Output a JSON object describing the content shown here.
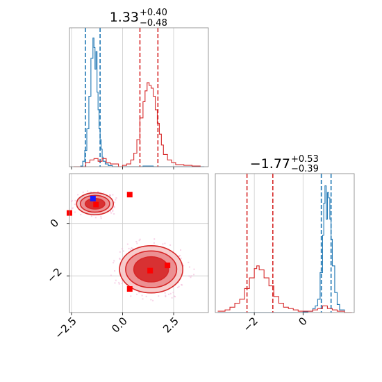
{
  "chart_data": [
    {
      "type": "histogram",
      "panel": "marginal-x1",
      "title": {
        "main": "1.33",
        "sup": "+0.40",
        "sub": "−0.48"
      },
      "xlim": [
        -2.6,
        4.2
      ],
      "grid": true,
      "series": [
        {
          "color": "#1f77b4",
          "points": [
            [
              -2.4,
              0
            ],
            [
              -2.2,
              0
            ],
            [
              -2.05,
              0.005
            ],
            [
              -1.95,
              0.04
            ],
            [
              -1.85,
              0.12
            ],
            [
              -1.75,
              0.28
            ],
            [
              -1.65,
              0.52
            ],
            [
              -1.55,
              0.8
            ],
            [
              -1.45,
              0.95
            ],
            [
              -1.4,
              0.88
            ],
            [
              -1.35,
              0.72
            ],
            [
              -1.3,
              0.85
            ],
            [
              -1.25,
              0.55
            ],
            [
              -1.2,
              0.42
            ],
            [
              -1.15,
              0.28
            ],
            [
              -1.1,
              0.2
            ],
            [
              -1.05,
              0.13
            ],
            [
              -1.0,
              0.07
            ],
            [
              -0.95,
              0.04
            ],
            [
              -0.85,
              0.02
            ],
            [
              -0.7,
              0.008
            ],
            [
              -0.5,
              0.0
            ],
            [
              0.5,
              0.0
            ],
            [
              1.0,
              0.005
            ],
            [
              1.5,
              0.0
            ],
            [
              4.0,
              0.0
            ]
          ],
          "quantile_lines": [
            -1.82,
            -1.1
          ]
        },
        {
          "color": "#d62728",
          "points": [
            [
              -2.4,
              0
            ],
            [
              -1.8,
              0.03
            ],
            [
              -1.6,
              0.05
            ],
            [
              -1.4,
              0.06
            ],
            [
              -1.2,
              0.04
            ],
            [
              -1.0,
              0.06
            ],
            [
              -0.8,
              0.03
            ],
            [
              -0.6,
              0.02
            ],
            [
              -0.2,
              0.0
            ],
            [
              0.0,
              0.01
            ],
            [
              0.2,
              0.02
            ],
            [
              0.4,
              0.05
            ],
            [
              0.55,
              0.1
            ],
            [
              0.7,
              0.2
            ],
            [
              0.85,
              0.36
            ],
            [
              1.0,
              0.48
            ],
            [
              1.1,
              0.56
            ],
            [
              1.2,
              0.62
            ],
            [
              1.3,
              0.6
            ],
            [
              1.4,
              0.58
            ],
            [
              1.5,
              0.52
            ],
            [
              1.6,
              0.42
            ],
            [
              1.7,
              0.32
            ],
            [
              1.8,
              0.24
            ],
            [
              1.9,
              0.16
            ],
            [
              2.0,
              0.09
            ],
            [
              2.2,
              0.05
            ],
            [
              2.4,
              0.03
            ],
            [
              2.6,
              0.015
            ],
            [
              3.0,
              0.01
            ],
            [
              3.4,
              0.005
            ],
            [
              3.8,
              0.0
            ]
          ],
          "quantile_lines": [
            0.85,
            1.73
          ]
        }
      ]
    },
    {
      "type": "contour",
      "panel": "joint-x1-x2",
      "xlim": [
        -2.6,
        4.2
      ],
      "ylim": [
        -3.4,
        1.9
      ],
      "xticks": [
        "−2.5",
        "0.0",
        "2.5"
      ],
      "yticks": [
        "−2",
        "0"
      ],
      "grid": true,
      "components": [
        {
          "color": "#1f77b4",
          "center": [
            -1.5,
            0.85
          ],
          "levels": [
            [
              0.6,
              0.28
            ],
            [
              0.42,
              0.18
            ],
            [
              0.22,
              0.1
            ]
          ]
        },
        {
          "color": "#d62728",
          "center": [
            -1.35,
            0.75
          ],
          "levels": [
            [
              0.9,
              0.42
            ],
            [
              0.72,
              0.32
            ],
            [
              0.48,
              0.2
            ]
          ]
        },
        {
          "color": "#d62728",
          "center": [
            1.4,
            -1.75
          ],
          "levels": [
            [
              1.55,
              0.9
            ],
            [
              1.25,
              0.7
            ],
            [
              0.85,
              0.48
            ]
          ]
        }
      ],
      "markers": [
        {
          "color": "#1a1aff",
          "x": -1.45,
          "y": 0.95
        },
        {
          "color": "#ff0000",
          "x": -1.3,
          "y": 0.72
        },
        {
          "color": "#ff0000",
          "x": 0.35,
          "y": 1.1
        },
        {
          "color": "#ff0000",
          "x": 1.35,
          "y": -1.8
        },
        {
          "color": "#ff0000",
          "x": 2.2,
          "y": -1.6
        },
        {
          "color": "#ff0000",
          "x": 0.35,
          "y": -2.5
        },
        {
          "color": "#ff0000",
          "x": -2.6,
          "y": 0.4
        }
      ]
    },
    {
      "type": "histogram",
      "panel": "marginal-x2",
      "title": {
        "main": "−1.77",
        "sup": "+0.53",
        "sub": "−0.39"
      },
      "xlim": [
        -3.6,
        2.1
      ],
      "xticks": [
        "−2",
        "0"
      ],
      "grid": true,
      "series": [
        {
          "color": "#1f77b4",
          "points": [
            [
              -3.5,
              0
            ],
            [
              -0.4,
              0
            ],
            [
              0.0,
              0.005
            ],
            [
              0.2,
              0.01
            ],
            [
              0.4,
              0.03
            ],
            [
              0.5,
              0.05
            ],
            [
              0.6,
              0.1
            ],
            [
              0.7,
              0.3
            ],
            [
              0.8,
              0.58
            ],
            [
              0.85,
              0.82
            ],
            [
              0.9,
              0.95
            ],
            [
              0.95,
              0.7
            ],
            [
              1.0,
              0.9
            ],
            [
              1.05,
              0.86
            ],
            [
              1.1,
              0.7
            ],
            [
              1.15,
              0.55
            ],
            [
              1.2,
              0.35
            ],
            [
              1.3,
              0.15
            ],
            [
              1.4,
              0.06
            ],
            [
              1.5,
              0.02
            ],
            [
              1.7,
              0.0
            ],
            [
              2.0,
              0.0
            ]
          ],
          "quantile_lines": [
            0.75,
            1.15
          ]
        },
        {
          "color": "#d62728",
          "points": [
            [
              -3.5,
              0.01
            ],
            [
              -3.2,
              0.02
            ],
            [
              -3.0,
              0.04
            ],
            [
              -2.8,
              0.07
            ],
            [
              -2.6,
              0.1
            ],
            [
              -2.4,
              0.18
            ],
            [
              -2.2,
              0.26
            ],
            [
              -2.0,
              0.33
            ],
            [
              -1.9,
              0.35
            ],
            [
              -1.8,
              0.32
            ],
            [
              -1.6,
              0.26
            ],
            [
              -1.4,
              0.2
            ],
            [
              -1.2,
              0.12
            ],
            [
              -1.0,
              0.07
            ],
            [
              -0.8,
              0.04
            ],
            [
              -0.6,
              0.03
            ],
            [
              -0.4,
              0.02
            ],
            [
              -0.2,
              0.01
            ],
            [
              0.0,
              0.01
            ],
            [
              0.2,
              0.01
            ],
            [
              0.4,
              0.02
            ],
            [
              0.6,
              0.03
            ],
            [
              0.8,
              0.05
            ],
            [
              1.0,
              0.03
            ],
            [
              1.2,
              0.02
            ],
            [
              1.4,
              0.01
            ],
            [
              1.7,
              0.0
            ],
            [
              2.0,
              0.0
            ]
          ],
          "quantile_lines": [
            -2.3,
            -1.24
          ]
        }
      ]
    }
  ]
}
